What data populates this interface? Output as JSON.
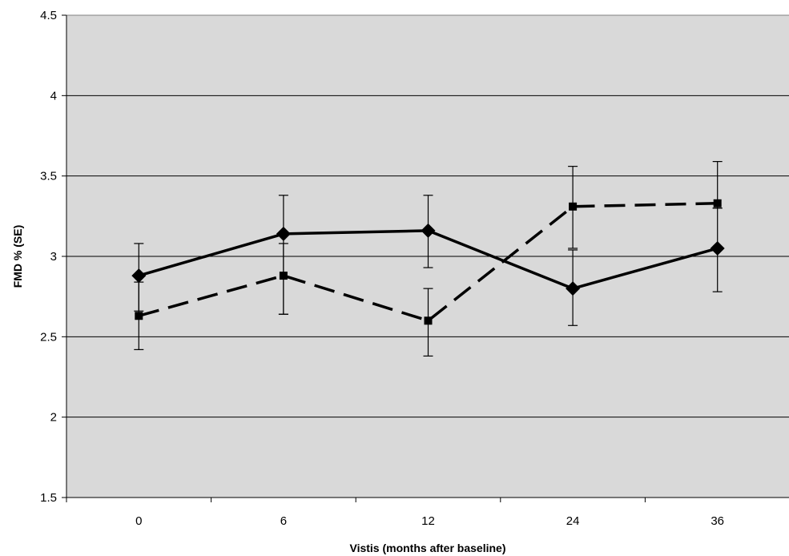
{
  "chart_data": {
    "type": "line",
    "title": "",
    "xlabel": "Vistis (months after baseline)",
    "ylabel": "FMD % (SE)",
    "categories": [
      "0",
      "6",
      "12",
      "24",
      "36"
    ],
    "ylim": [
      1.5,
      4.5
    ],
    "yticks": [
      1.5,
      2,
      2.5,
      3,
      3.5,
      4,
      4.5
    ],
    "ytick_labels": [
      "1.5",
      "2",
      "2.5",
      "3",
      "3.5",
      "4",
      "4.5"
    ],
    "grid": true,
    "plot_background": "#d9d9d9",
    "series": [
      {
        "line_style": "solid",
        "marker": "diamond",
        "color": "#000000",
        "values": [
          2.88,
          3.14,
          3.16,
          2.8,
          3.05
        ],
        "error_low": [
          2.66,
          2.64,
          2.93,
          2.57,
          2.78
        ],
        "error_high": [
          3.08,
          3.38,
          3.38,
          3.04,
          3.3
        ]
      },
      {
        "line_style": "dashed",
        "marker": "square",
        "color": "#000000",
        "values": [
          2.63,
          2.88,
          2.6,
          3.31,
          3.33
        ],
        "error_low": [
          2.42,
          2.64,
          2.38,
          3.05,
          3.3
        ],
        "error_high": [
          2.84,
          3.08,
          2.8,
          3.56,
          3.59
        ]
      }
    ]
  }
}
